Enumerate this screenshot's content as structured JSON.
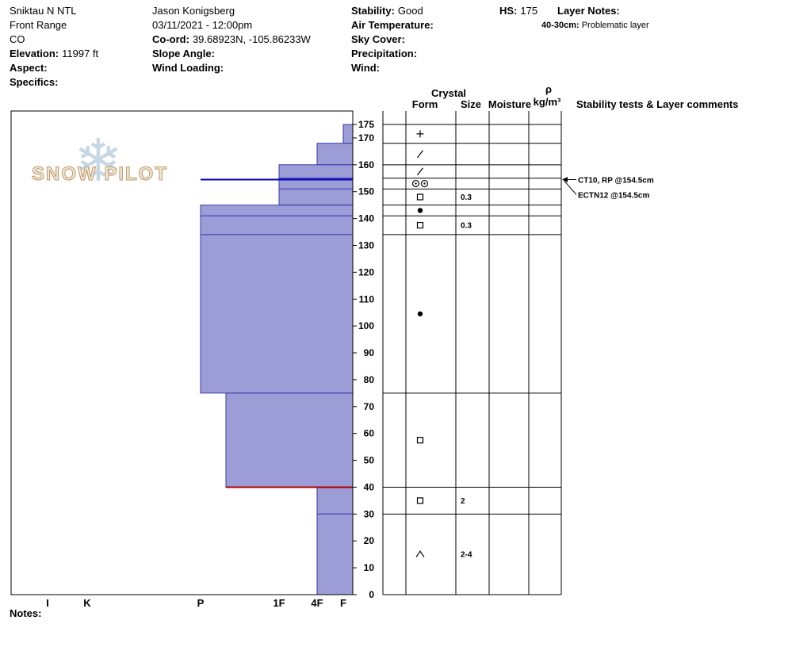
{
  "header": {
    "site": "Sniktau N NTL",
    "range": "Front Range",
    "state": "CO",
    "elevation_label": "Elevation:",
    "elevation_value": "11997 ft",
    "aspect_label": "Aspect:",
    "specifics_label": "Specifics:",
    "observer": "Jason Konigsberg",
    "datetime": "03/11/2021 - 12:00pm",
    "coord_label": "Co-ord:",
    "coord_value": "39.68923N, -105.86233W",
    "slope_angle_label": "Slope Angle:",
    "wind_loading_label": "Wind Loading:",
    "stability_label": "Stability:",
    "stability_value": "Good",
    "air_temp_label": "Air Temperature:",
    "sky_cover_label": "Sky Cover:",
    "precipitation_label": "Precipitation:",
    "wind_label": "Wind:",
    "hs_label": "HS:",
    "hs_value": "175",
    "layer_notes_label": "Layer Notes:",
    "layer_note_depth": "40-30cm:",
    "layer_note_text": "Problematic layer"
  },
  "logo": {
    "text": "SNOW PILOT",
    "flake": "❄"
  },
  "notes_label": "Notes:",
  "colors": {
    "bar_fill": "#9c9cd6",
    "bar_stroke": "#3939ae",
    "failure_line": "#0000bb",
    "problem_line": "#b00000",
    "grid": "#000000"
  },
  "chart_data": {
    "type": "snow-profile",
    "title": "Snow pit profile: hand hardness vs depth with grain form table",
    "hs_cm": 175,
    "depth_unit": "cm",
    "ylim": [
      0,
      175
    ],
    "depth_ticks": [
      0,
      10,
      20,
      30,
      40,
      50,
      60,
      70,
      80,
      90,
      100,
      110,
      120,
      130,
      140,
      150,
      160,
      170,
      175
    ],
    "hardness_axis_labels": [
      "I",
      "K",
      "P",
      "1F",
      "4F",
      "F"
    ],
    "layers": [
      {
        "top_cm": 175,
        "bottom_cm": 168,
        "hardness": "F",
        "form": "plus",
        "size_mm": "",
        "moisture": ""
      },
      {
        "top_cm": 168,
        "bottom_cm": 160,
        "hardness": "4F",
        "form": "slash",
        "size_mm": "",
        "moisture": ""
      },
      {
        "top_cm": 160,
        "bottom_cm": 155,
        "hardness": "1F",
        "form": "slash",
        "size_mm": "",
        "moisture": ""
      },
      {
        "top_cm": 155,
        "bottom_cm": 151,
        "hardness": "1F",
        "form": "double-circle",
        "size_mm": "",
        "moisture": ""
      },
      {
        "top_cm": 151,
        "bottom_cm": 145,
        "hardness": "1F",
        "form": "square",
        "size_mm": "0.3",
        "moisture": ""
      },
      {
        "top_cm": 145,
        "bottom_cm": 141,
        "hardness": "P",
        "form": "dot",
        "size_mm": "",
        "moisture": ""
      },
      {
        "top_cm": 141,
        "bottom_cm": 134,
        "hardness": "P",
        "form": "square",
        "size_mm": "0.3",
        "moisture": ""
      },
      {
        "top_cm": 134,
        "bottom_cm": 75,
        "hardness": "P",
        "form": "dot",
        "size_mm": "",
        "moisture": ""
      },
      {
        "top_cm": 75,
        "bottom_cm": 40,
        "hardness": "P-",
        "form": "square",
        "size_mm": "",
        "moisture": ""
      },
      {
        "top_cm": 40,
        "bottom_cm": 30,
        "hardness": "4F",
        "form": "square",
        "size_mm": "2",
        "moisture": ""
      },
      {
        "top_cm": 30,
        "bottom_cm": 0,
        "hardness": "4F",
        "form": "caret",
        "size_mm": "2-4",
        "moisture": ""
      }
    ],
    "markers": [
      {
        "depth_cm": 154.5,
        "span_hardness": "P",
        "color_key": "failure_line",
        "name": "failure-plane-line"
      },
      {
        "depth_cm": 40,
        "span_hardness": "P-",
        "color_key": "problem_line",
        "name": "problem-layer-line"
      }
    ],
    "table_headers": {
      "crystal": "Crystal",
      "form": "Form",
      "size": "Size",
      "moisture": "Moisture",
      "density_symbol": "ρ",
      "density_units": "kg/m³",
      "stability": "Stability tests & Layer comments"
    },
    "stability_tests": [
      {
        "label": "CT10, RP @154.5cm",
        "depth_cm": 154.5
      },
      {
        "label": "ECTN12 @154.5cm",
        "depth_cm": 154.5
      }
    ]
  }
}
